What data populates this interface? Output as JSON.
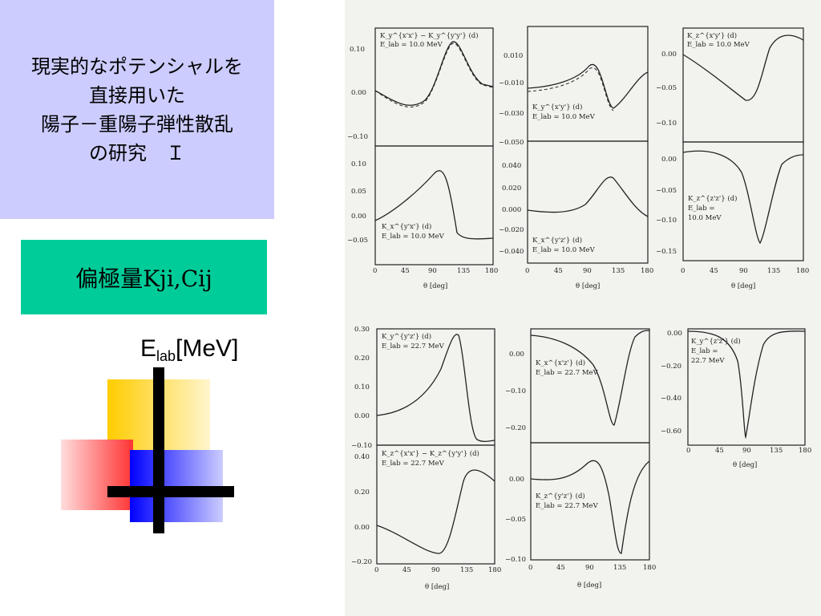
{
  "slide": {
    "title_lines": [
      "現実的なポテンシャルを",
      "直接用いた",
      "陽子－重陽子弾性散乱",
      "の研究　Ｉ"
    ],
    "subtitle": "偏極量Kji,Cij",
    "energy_label_main": "E",
    "energy_label_sub": "lab",
    "energy_label_unit": "[MeV]"
  },
  "figure": {
    "xlabel": "θ [deg]",
    "x_ticks": [
      "0",
      "45",
      "90",
      "135",
      "180"
    ],
    "panels": [
      {
        "label_1": "K_y^{x'x'} − K_y^{y'y'} (d)",
        "label_2": "E_lab = 10.0 MeV",
        "y_ticks": [
          "0.10",
          "0.00",
          "−0.10"
        ]
      },
      {
        "label_1": "K_x^{y'x'} (d)",
        "label_2": "E_lab = 10.0 MeV",
        "y_ticks": [
          "0.10",
          "0.05",
          "0.00",
          "−0.05"
        ]
      },
      {
        "label_1": "K_y^{x'y'} (d)",
        "label_2": "E_lab = 10.0 MeV",
        "y_ticks": [
          "0.010",
          "−0.010",
          "−0.030",
          "−0.050"
        ]
      },
      {
        "label_1": "K_x^{y'z'} (d)",
        "label_2": "E_lab = 10.0 MeV",
        "y_ticks": [
          "0.040",
          "0.020",
          "0.000",
          "−0.020",
          "−0.040"
        ]
      },
      {
        "label_1": "K_z^{x'y'} (d)",
        "label_2": "E_lab = 10.0 MeV",
        "y_ticks": [
          "0.00",
          "−0.05",
          "−0.10"
        ]
      },
      {
        "label_1": "K_z^{z'z'} (d)",
        "label_2": "E_lab =",
        "label_3": "10.0 MeV",
        "y_ticks": [
          "0.00",
          "−0.05",
          "−0.10",
          "−0.15"
        ]
      },
      {
        "label_1": "K_y^{y'z'} (d)",
        "label_2": "E_lab = 22.7 MeV",
        "y_ticks": [
          "0.30",
          "0.20",
          "0.10",
          "0.00",
          "−0.10"
        ]
      },
      {
        "label_1": "K_z^{x'x'} − K_z^{y'y'} (d)",
        "label_2": "E_lab = 22.7 MeV",
        "y_ticks": [
          "0.40",
          "0.20",
          "0.00",
          "−0.20"
        ]
      },
      {
        "label_1": "K_x^{x'z'} (d)",
        "label_2": "E_lab = 22.7 MeV",
        "y_ticks": [
          "0.00",
          "−0.10",
          "−0.20"
        ]
      },
      {
        "label_1": "K_z^{y'z'} (d)",
        "label_2": "E_lab = 22.7 MeV",
        "y_ticks": [
          "0.00",
          "−0.05",
          "−0.10"
        ]
      },
      {
        "label_1": "K_y^{z'z'} (d)",
        "label_2": "E_lab =",
        "label_3": "22.7 MeV",
        "y_ticks": [
          "0.00",
          "−0.20",
          "−0.40",
          "−0.60"
        ]
      }
    ]
  }
}
